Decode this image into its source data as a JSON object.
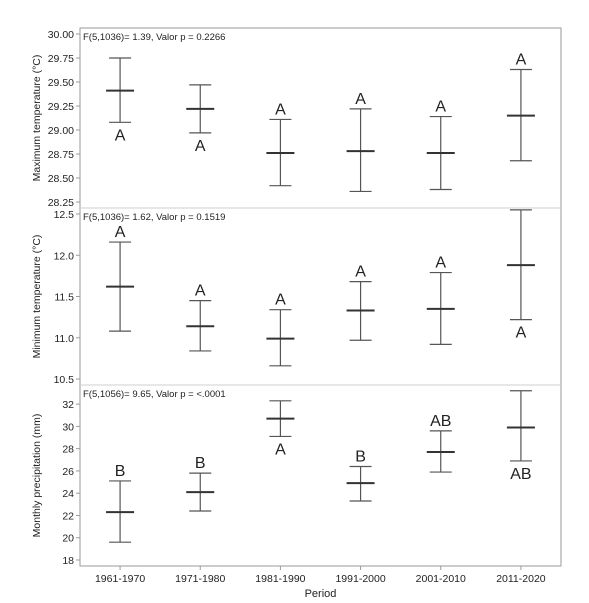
{
  "chart_data": [
    {
      "type": "interval",
      "ylabel": "Maximum temperature (°C)",
      "annotation": "F(5,1036)= 1.39, Valor p = 0.2266",
      "ylim": [
        28.25,
        30.0
      ],
      "yticks": [
        28.25,
        28.5,
        28.75,
        29.0,
        29.25,
        29.5,
        29.75,
        30.0
      ],
      "ytick_labels": [
        "28.25",
        "28.50",
        "28.75",
        "29.00",
        "29.25",
        "29.50",
        "29.75",
        "30.00"
      ],
      "categories": [
        "1961-1970",
        "1971-1980",
        "1981-1990",
        "1991-2000",
        "2001-2010",
        "2011-2020"
      ],
      "means": [
        29.41,
        29.22,
        28.76,
        28.78,
        28.76,
        29.15
      ],
      "lower": [
        29.08,
        28.97,
        28.42,
        28.36,
        28.38,
        28.68
      ],
      "upper": [
        29.75,
        29.47,
        29.11,
        29.22,
        29.14,
        29.63
      ],
      "letters": [
        "A",
        "A",
        "A",
        "A",
        "A",
        "A"
      ],
      "letter_side": [
        "below",
        "below",
        "above",
        "above",
        "above",
        "above"
      ]
    },
    {
      "type": "interval",
      "ylabel": "Minimum temperature (°C)",
      "annotation": "F(5,1036)= 1.62, Valor p = 0.1519",
      "ylim": [
        10.5,
        12.5
      ],
      "yticks": [
        10.5,
        11.0,
        11.5,
        12.0,
        12.5
      ],
      "ytick_labels": [
        "10.5",
        "11.0",
        "11.5",
        "12.0",
        "12.5"
      ],
      "categories": [
        "1961-1970",
        "1971-1980",
        "1981-1990",
        "1991-2000",
        "2001-2010",
        "2011-2020"
      ],
      "means": [
        11.62,
        11.14,
        10.99,
        11.33,
        11.35,
        11.88
      ],
      "lower": [
        11.08,
        10.84,
        10.66,
        10.97,
        10.92,
        11.22
      ],
      "upper": [
        12.16,
        11.45,
        11.34,
        11.68,
        11.79,
        12.55
      ],
      "letters": [
        "A",
        "A",
        "A",
        "A",
        "A",
        "A"
      ],
      "letter_side": [
        "above",
        "above",
        "above",
        "above",
        "above",
        "below"
      ]
    },
    {
      "type": "interval",
      "ylabel": "Monthly precipitation (mm)",
      "annotation": "F(5,1056)= 9.65, Valor p = <.0001",
      "ylim": [
        18,
        33
      ],
      "yticks": [
        18,
        20,
        22,
        24,
        26,
        28,
        30,
        32
      ],
      "ytick_labels": [
        "18",
        "20",
        "22",
        "24",
        "26",
        "28",
        "30",
        "32"
      ],
      "categories": [
        "1961-1970",
        "1971-1980",
        "1981-1990",
        "1991-2000",
        "2001-2010",
        "2011-2020"
      ],
      "means": [
        22.3,
        24.1,
        30.7,
        24.9,
        27.7,
        29.9
      ],
      "lower": [
        19.6,
        22.4,
        29.1,
        23.3,
        25.9,
        26.9
      ],
      "upper": [
        25.1,
        25.8,
        32.3,
        26.4,
        29.6,
        33.2
      ],
      "letters": [
        "B",
        "B",
        "A",
        "B",
        "AB",
        "AB"
      ],
      "letter_side": [
        "above",
        "above",
        "below",
        "above",
        "above",
        "below"
      ]
    }
  ],
  "xlabel": "Period",
  "colors": {
    "frame": "#9a9a9a",
    "interval": "#555555",
    "mean": "#333333",
    "text": "#222222"
  }
}
